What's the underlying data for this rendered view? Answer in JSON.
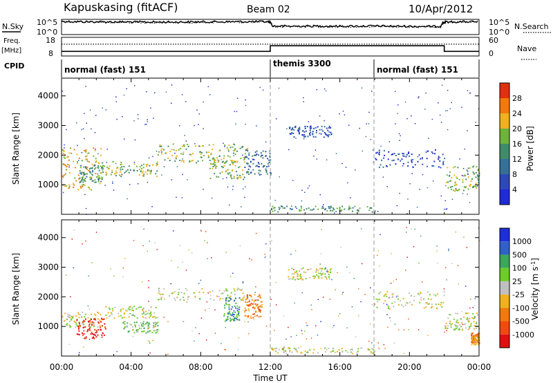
{
  "header": {
    "station": "Kapuskasing (fitACF)",
    "beam": "Beam 02",
    "date": "10/Apr/2012"
  },
  "strip_labels": {
    "nsky": "N.Sky",
    "nsearch": "N.Search",
    "freq_line1": "Freq.",
    "freq_line2": "[MHz]",
    "nave": "Nave",
    "cpid": "CPID"
  },
  "cpid_segments": [
    {
      "label": "normal (fast) 151",
      "start": "00:00",
      "end": "12:00"
    },
    {
      "label": "themis 3300",
      "start": "12:00",
      "end": "18:00"
    },
    {
      "label": "normal (fast) 151",
      "start": "18:00",
      "end": "24:00"
    }
  ],
  "colors": {
    "power_scale": [
      "#1f2bd6",
      "#2f48b8",
      "#35709a",
      "#3f8c6b",
      "#6fb33a",
      "#f0b020",
      "#f07a10",
      "#e03010"
    ],
    "velocity_scale": [
      "#1e2ed8",
      "#2f62c8",
      "#3aa85a",
      "#6ccd2a",
      "#c0c0c0",
      "#f0b020",
      "#f07a10",
      "#f04a10",
      "#e01010"
    ],
    "ground_scatter": "#bdbdbd"
  },
  "chart_data": [
    {
      "type": "line",
      "title": "",
      "panel": "N.Sky / N.Search noise",
      "ylabel_left": "N.Sky",
      "ylabel_right": "N.Search",
      "y_ticks_left": [
        "10^5",
        "10^0"
      ],
      "y_ticks_right": [
        "10^5",
        "10^0"
      ],
      "log_scale": true,
      "x": [
        0,
        1,
        2,
        3,
        4,
        5,
        6,
        7,
        8,
        9,
        10,
        11,
        11.9,
        12.1,
        13,
        14,
        15,
        16,
        17,
        18,
        19,
        20,
        21,
        21.8,
        22.1,
        23,
        24
      ],
      "series": [
        {
          "name": "N.Sky",
          "values": [
            100000,
            80000,
            70000,
            65000,
            60000,
            58000,
            55000,
            60000,
            65000,
            70000,
            75000,
            80000,
            80000,
            1500,
            1200,
            1300,
            1400,
            1200,
            1300,
            1500,
            1200,
            1100,
            1000,
            1000,
            60000,
            70000,
            80000
          ]
        },
        {
          "name": "N.Search",
          "values": [
            60000,
            50000,
            45000,
            40000,
            38000,
            35000,
            33000,
            36000,
            40000,
            45000,
            50000,
            55000,
            55000,
            900,
            800,
            850,
            900,
            800,
            850,
            900,
            800,
            700,
            650,
            650,
            40000,
            45000,
            50000
          ]
        }
      ]
    },
    {
      "type": "line",
      "title": "",
      "panel": "Frequency / Nave",
      "ylabel_left": "Freq. [MHz]",
      "ylabel_right": "Nave",
      "y_ticks_left": [
        "18",
        "8"
      ],
      "y_ticks_right": [
        "60",
        "0"
      ],
      "x": [
        0,
        12,
        12,
        22,
        22,
        24
      ],
      "series": [
        {
          "name": "Freq.",
          "values": [
            10.5,
            10.5,
            13.5,
            13.5,
            10.5,
            10.5
          ]
        },
        {
          "name": "Nave",
          "values": [
            38,
            38,
            38,
            38,
            38,
            38
          ]
        }
      ]
    },
    {
      "type": "heatmap",
      "title": "",
      "panel": "Power",
      "xlabel": "Time UT",
      "ylabel": "Slant Range [km]",
      "xlim": [
        "00:00",
        "24:00"
      ],
      "ylim": [
        0,
        4600
      ],
      "x_ticks": [
        "00:00",
        "04:00",
        "08:00",
        "12:00",
        "16:00",
        "20:00",
        "00:00"
      ],
      "y_ticks": [
        1000,
        2000,
        3000,
        4000
      ],
      "colorbar_label": "Power [dB]",
      "colorbar_ticks": [
        4,
        8,
        12,
        16,
        20,
        24,
        28
      ],
      "regions": [
        {
          "t0": 0.0,
          "t1": 2.3,
          "r0": 850,
          "r1": 2300,
          "level": 5
        },
        {
          "t0": 1.0,
          "t1": 2.4,
          "r0": 1100,
          "r1": 1700,
          "level": 3
        },
        {
          "t0": 2.3,
          "t1": 5.5,
          "r0": 1300,
          "r1": 1800,
          "level": 4
        },
        {
          "t0": 5.5,
          "t1": 10.8,
          "r0": 1750,
          "r1": 2400,
          "level": 4
        },
        {
          "t0": 8.5,
          "t1": 10.5,
          "r0": 1200,
          "r1": 2000,
          "level": 4
        },
        {
          "t0": 10.5,
          "t1": 12.0,
          "r0": 1350,
          "r1": 2200,
          "level": 2
        },
        {
          "t0": 13.0,
          "t1": 15.5,
          "r0": 2600,
          "r1": 3000,
          "level": 1
        },
        {
          "t0": 12.0,
          "t1": 18.0,
          "r0": 100,
          "r1": 300,
          "level": 3
        },
        {
          "t0": 18.0,
          "t1": 22.0,
          "r0": 1600,
          "r1": 2200,
          "level": 1
        },
        {
          "t0": 22.0,
          "t1": 24.0,
          "r0": 800,
          "r1": 1700,
          "level": 4
        }
      ]
    },
    {
      "type": "heatmap",
      "title": "",
      "panel": "Velocity",
      "xlabel": "Time UT",
      "ylabel": "Slant Range [km]",
      "xlim": [
        "00:00",
        "24:00"
      ],
      "ylim": [
        0,
        4600
      ],
      "x_ticks": [
        "00:00",
        "04:00",
        "08:00",
        "12:00",
        "16:00",
        "20:00",
        "00:00"
      ],
      "y_ticks": [
        1000,
        2000,
        3000,
        4000
      ],
      "colorbar_label": "Velocity [m s^-1]",
      "colorbar_ticks": [
        1000,
        500,
        100,
        25,
        -25,
        -100,
        -500,
        -1000
      ],
      "regions": [
        {
          "t0": 0.0,
          "t1": 2.3,
          "r0": 1000,
          "r1": 1500,
          "level": 4
        },
        {
          "t0": 0.8,
          "t1": 2.5,
          "r0": 600,
          "r1": 1300,
          "level": 8
        },
        {
          "t0": 2.5,
          "t1": 5.5,
          "r0": 1300,
          "r1": 1700,
          "level": 4
        },
        {
          "t0": 3.5,
          "t1": 5.5,
          "r0": 800,
          "r1": 1200,
          "level": 3
        },
        {
          "t0": 5.5,
          "t1": 10.8,
          "r0": 1900,
          "r1": 2300,
          "level": 4
        },
        {
          "t0": 9.3,
          "t1": 10.2,
          "r0": 1200,
          "r1": 2000,
          "level": 2
        },
        {
          "t0": 10.5,
          "t1": 11.5,
          "r0": 1300,
          "r1": 2100,
          "level": 6
        },
        {
          "t0": 13.0,
          "t1": 15.5,
          "r0": 2600,
          "r1": 3000,
          "level": 4
        },
        {
          "t0": 12.0,
          "t1": 18.0,
          "r0": 100,
          "r1": 300,
          "level": 4
        },
        {
          "t0": 18.0,
          "t1": 22.0,
          "r0": 1600,
          "r1": 2200,
          "level": 4
        },
        {
          "t0": 22.0,
          "t1": 24.0,
          "r0": 900,
          "r1": 1500,
          "level": 4
        },
        {
          "t0": 23.5,
          "t1": 24.0,
          "r0": 400,
          "r1": 800,
          "level": 6
        }
      ]
    }
  ]
}
